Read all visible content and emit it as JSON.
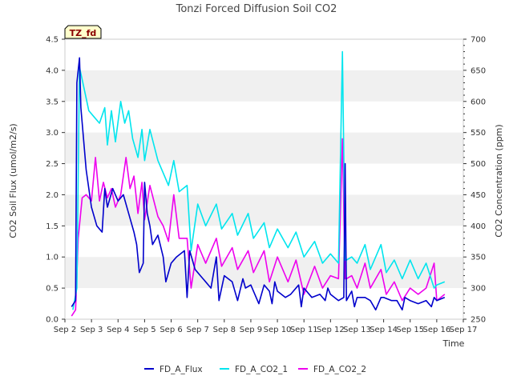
{
  "chart_data": {
    "type": "line",
    "title": "Tonzi Forced Diffusion Soil CO2",
    "badge": "TZ_fd",
    "xlabel": "Time",
    "ylabel_left": "CO2 Soil Flux (umol/m2/s)",
    "ylabel_right": "CO2 Concentration (ppm)",
    "x_ticks": [
      "Sep 2",
      "Sep 3",
      "Sep 4",
      "Sep 5",
      "Sep 6",
      "Sep 7",
      "Sep 8",
      "Sep 9",
      "Sep 10",
      "Sep 11",
      "Sep 12",
      "Sep 13",
      "Sep 14",
      "Sep 15",
      "Sep 16",
      "Sep 17"
    ],
    "xlim": [
      2,
      17
    ],
    "ylim_left": [
      0,
      4.5
    ],
    "ylim_right": [
      250,
      700
    ],
    "y_ticks_left": [
      "0.0",
      "0.5",
      "1.0",
      "1.5",
      "2.0",
      "2.5",
      "3.0",
      "3.5",
      "4.0",
      "4.5"
    ],
    "y_ticks_right": [
      "250",
      "300",
      "350",
      "400",
      "450",
      "500",
      "550",
      "600",
      "650",
      "700"
    ],
    "grid": "horizontal bands",
    "legend_position": "bottom",
    "colors": {
      "FD_A_Flux": "#0000cc",
      "FD_A_CO2_1": "#00e5ee",
      "FD_A_CO2_2": "#ee00ee"
    },
    "series": [
      {
        "name": "FD_A_Flux",
        "axis": "left",
        "x": [
          2.25,
          2.4,
          2.45,
          2.55,
          2.6,
          2.8,
          3.0,
          3.2,
          3.4,
          3.5,
          3.6,
          3.8,
          4.0,
          4.2,
          4.4,
          4.6,
          4.7,
          4.8,
          4.95,
          5.0,
          5.1,
          5.2,
          5.3,
          5.5,
          5.7,
          5.8,
          6.0,
          6.2,
          6.5,
          6.6,
          6.7,
          6.9,
          7.0,
          7.1,
          7.3,
          7.5,
          7.7,
          7.8,
          8.0,
          8.3,
          8.5,
          8.7,
          8.8,
          9.0,
          9.3,
          9.5,
          9.7,
          9.8,
          9.9,
          10.0,
          10.3,
          10.5,
          10.8,
          10.9,
          11.0,
          11.3,
          11.6,
          11.8,
          11.9,
          12.0,
          12.3,
          12.5,
          12.55,
          12.6,
          12.8,
          12.9,
          13.0,
          13.3,
          13.5,
          13.7,
          13.9,
          14.0,
          14.3,
          14.5,
          14.7,
          14.8,
          15.0,
          15.3,
          15.6,
          15.8,
          15.9,
          16.0,
          16.3
        ],
        "y": [
          0.2,
          0.3,
          3.8,
          4.2,
          3.4,
          2.4,
          1.8,
          1.5,
          1.4,
          2.1,
          1.8,
          2.1,
          1.9,
          2.0,
          1.7,
          1.4,
          1.2,
          0.75,
          0.9,
          2.2,
          1.7,
          1.5,
          1.2,
          1.35,
          1.0,
          0.6,
          0.9,
          1.0,
          1.1,
          0.35,
          1.1,
          0.8,
          0.75,
          0.7,
          0.6,
          0.5,
          1.0,
          0.3,
          0.7,
          0.6,
          0.3,
          0.65,
          0.5,
          0.55,
          0.25,
          0.55,
          0.45,
          0.25,
          0.6,
          0.45,
          0.35,
          0.4,
          0.55,
          0.2,
          0.5,
          0.35,
          0.4,
          0.3,
          0.5,
          0.4,
          0.3,
          0.35,
          2.5,
          0.3,
          0.45,
          0.2,
          0.35,
          0.35,
          0.3,
          0.15,
          0.35,
          0.35,
          0.3,
          0.3,
          0.15,
          0.35,
          0.3,
          0.25,
          0.3,
          0.2,
          0.35,
          0.3,
          0.35
        ]
      },
      {
        "name": "FD_A_CO2_1",
        "axis": "right",
        "x": [
          2.3,
          2.45,
          2.55,
          2.7,
          2.9,
          3.1,
          3.3,
          3.5,
          3.6,
          3.75,
          3.9,
          4.1,
          4.25,
          4.4,
          4.55,
          4.75,
          4.9,
          5.0,
          5.2,
          5.5,
          5.7,
          5.9,
          6.1,
          6.3,
          6.6,
          6.75,
          7.0,
          7.3,
          7.7,
          7.9,
          8.3,
          8.5,
          8.9,
          9.1,
          9.5,
          9.7,
          10.0,
          10.4,
          10.7,
          11.0,
          11.4,
          11.7,
          12.0,
          12.3,
          12.45,
          12.55,
          12.6,
          12.8,
          13.0,
          13.3,
          13.5,
          13.9,
          14.1,
          14.4,
          14.7,
          15.0,
          15.3,
          15.6,
          15.9,
          16.0,
          16.3
        ],
        "y": [
          265,
          300,
          655,
          625,
          585,
          575,
          565,
          590,
          530,
          585,
          535,
          600,
          565,
          585,
          540,
          510,
          555,
          505,
          555,
          505,
          485,
          465,
          505,
          455,
          465,
          360,
          435,
          400,
          435,
          395,
          420,
          385,
          420,
          380,
          405,
          365,
          395,
          365,
          390,
          350,
          375,
          340,
          355,
          340,
          680,
          345,
          345,
          350,
          340,
          370,
          330,
          370,
          325,
          345,
          315,
          345,
          315,
          340,
          300,
          305,
          310
        ]
      },
      {
        "name": "FD_A_CO2_2",
        "axis": "right",
        "x": [
          2.25,
          2.4,
          2.5,
          2.65,
          2.8,
          3.0,
          3.15,
          3.3,
          3.45,
          3.6,
          3.75,
          3.9,
          4.1,
          4.3,
          4.45,
          4.6,
          4.75,
          4.9,
          5.0,
          5.2,
          5.5,
          5.7,
          5.9,
          6.1,
          6.3,
          6.6,
          6.75,
          7.0,
          7.3,
          7.7,
          7.9,
          8.3,
          8.5,
          8.9,
          9.1,
          9.5,
          9.7,
          10.0,
          10.4,
          10.7,
          11.0,
          11.4,
          11.7,
          12.0,
          12.3,
          12.45,
          12.55,
          12.6,
          12.8,
          13.0,
          13.3,
          13.5,
          13.9,
          14.1,
          14.4,
          14.7,
          15.0,
          15.3,
          15.6,
          15.9,
          16.0,
          16.3
        ],
        "y": [
          255,
          265,
          380,
          445,
          450,
          440,
          510,
          440,
          470,
          445,
          460,
          430,
          450,
          510,
          460,
          480,
          420,
          470,
          410,
          465,
          415,
          400,
          375,
          450,
          380,
          380,
          300,
          370,
          340,
          380,
          335,
          365,
          330,
          360,
          325,
          360,
          310,
          350,
          310,
          345,
          290,
          335,
          300,
          320,
          315,
          540,
          315,
          315,
          320,
          300,
          340,
          300,
          330,
          290,
          310,
          280,
          300,
          290,
          300,
          340,
          280,
          290
        ]
      }
    ]
  }
}
